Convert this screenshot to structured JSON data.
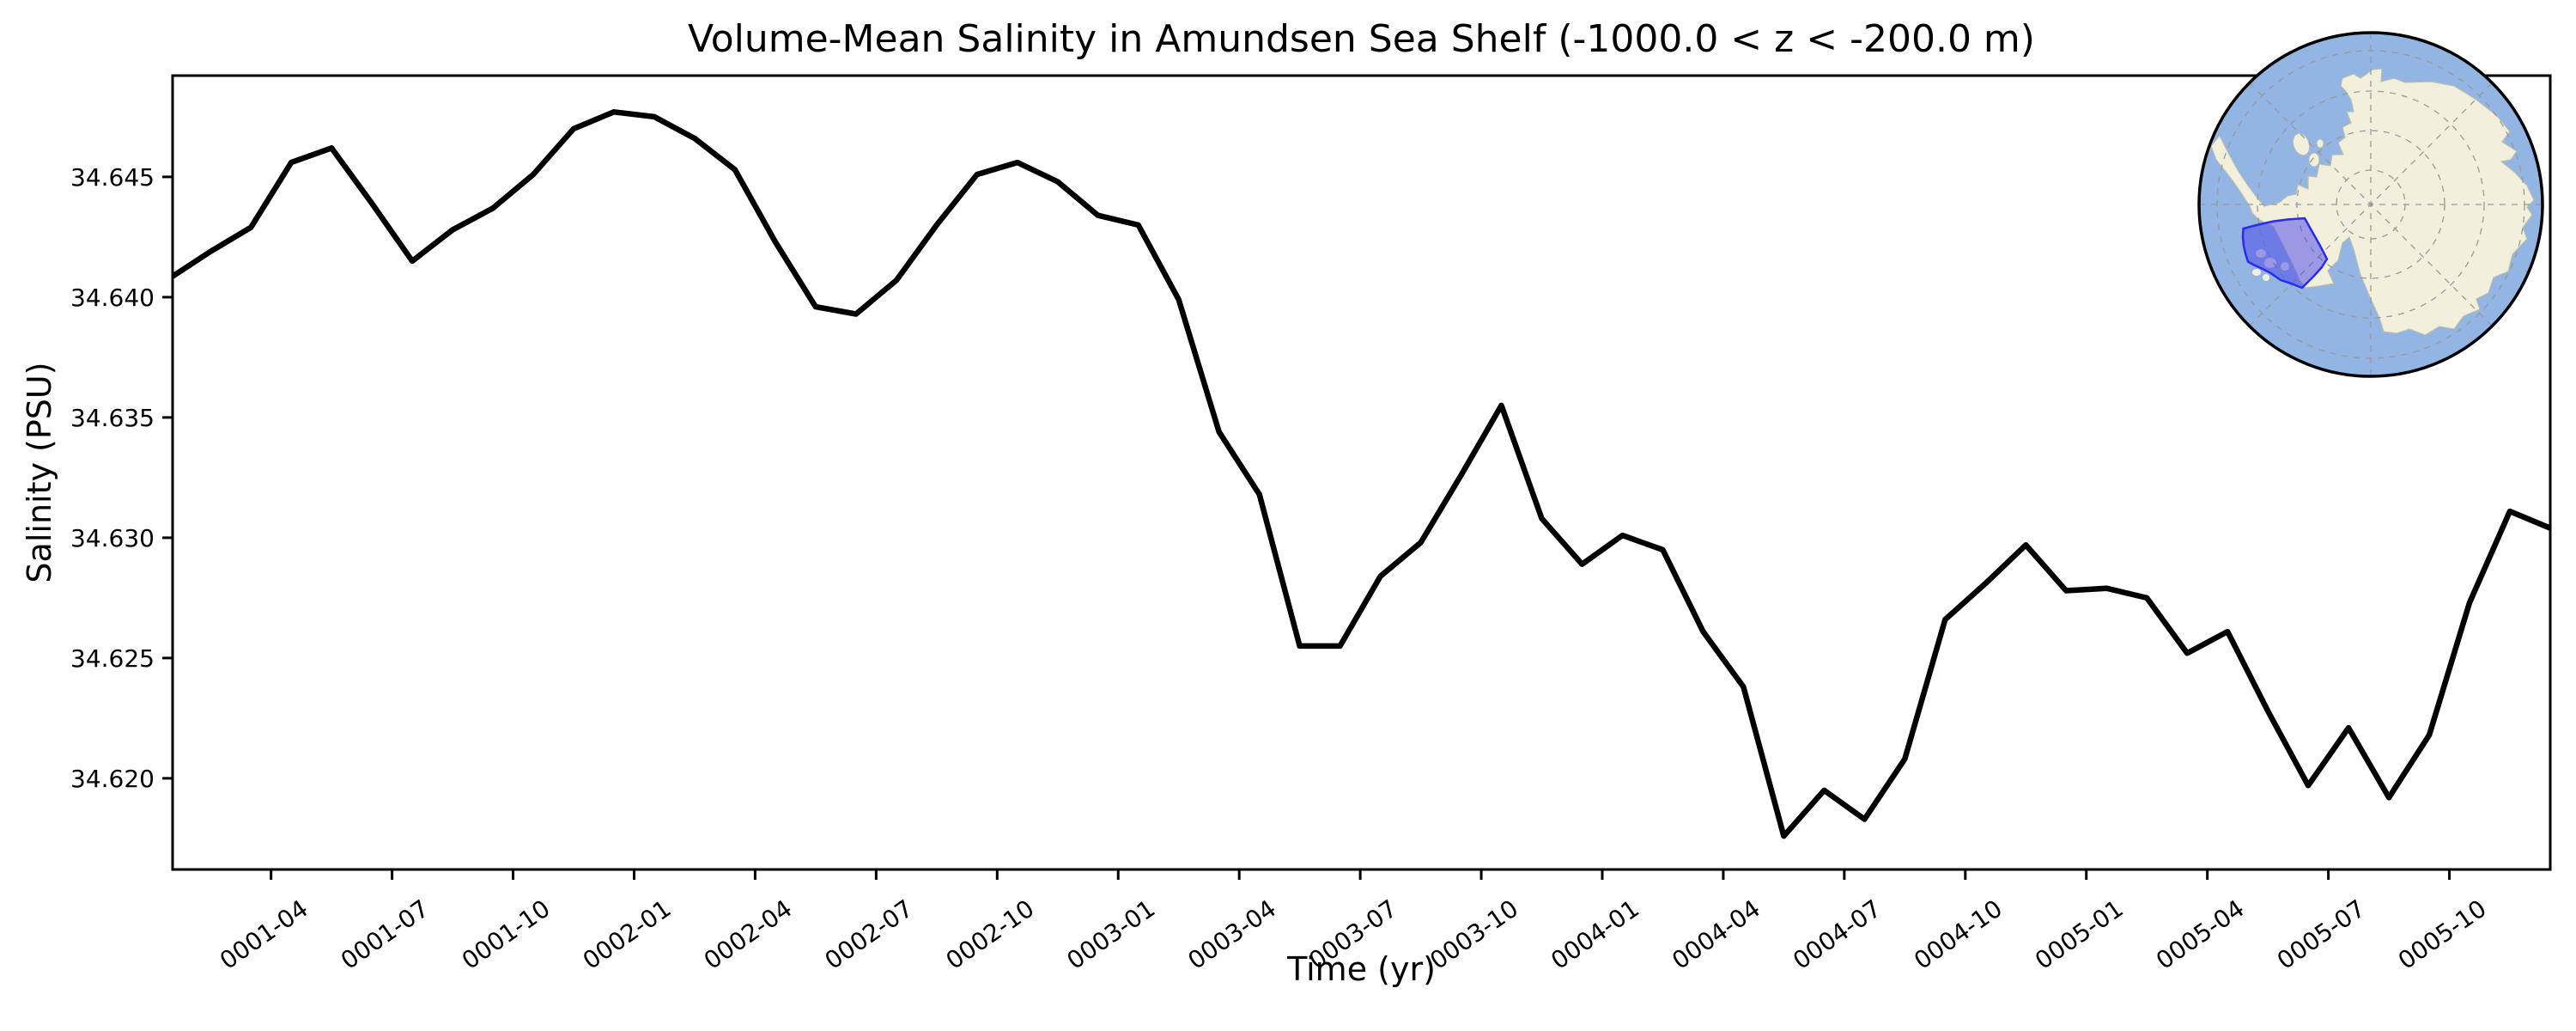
{
  "figure": {
    "title": "Volume-Mean Salinity in Amundsen Sea Shelf (-1000.0 < z < -200.0 m)",
    "background": "#ffffff"
  },
  "chart_data": {
    "type": "line",
    "title": "Volume-Mean Salinity in Amundsen Sea Shelf (-1000.0 < z < -200.0 m)",
    "xlabel": "Time (yr)",
    "ylabel": "Salinity (PSU)",
    "grid": false,
    "legend": false,
    "line_color": "#000000",
    "line_width": 6.5,
    "xlim_months": [
      0.559,
      59.5
    ],
    "ylim": [
      34.61621,
      34.64921
    ],
    "x_tick_labels": [
      "0001-04",
      "0001-07",
      "0001-10",
      "0002-01",
      "0002-04",
      "0002-07",
      "0002-10",
      "0003-01",
      "0003-04",
      "0003-07",
      "0003-10",
      "0004-01",
      "0004-04",
      "0004-07",
      "0004-10",
      "0005-01",
      "0005-04",
      "0005-07",
      "0005-10"
    ],
    "x_tick_months": [
      3,
      6,
      9,
      12,
      15,
      18,
      21,
      24,
      27,
      30,
      33,
      36,
      39,
      42,
      45,
      48,
      51,
      54,
      57
    ],
    "y_ticks": [
      34.62,
      34.625,
      34.63,
      34.635,
      34.64,
      34.645
    ],
    "y_tick_labels": [
      "34.620",
      "34.625",
      "34.630",
      "34.635",
      "34.640",
      "34.645"
    ],
    "series": [
      {
        "name": "volume-mean salinity",
        "x": [
          "0001-01",
          "0001-02",
          "0001-03",
          "0001-04",
          "0001-05",
          "0001-06",
          "0001-07",
          "0001-08",
          "0001-09",
          "0001-10",
          "0001-11",
          "0001-12",
          "0002-01",
          "0002-02",
          "0002-03",
          "0002-04",
          "0002-05",
          "0002-06",
          "0002-07",
          "0002-08",
          "0002-09",
          "0002-10",
          "0002-11",
          "0002-12",
          "0003-01",
          "0003-02",
          "0003-03",
          "0003-04",
          "0003-05",
          "0003-06",
          "0003-07",
          "0003-08",
          "0003-09",
          "0003-10",
          "0003-11",
          "0003-12",
          "0004-01",
          "0004-02",
          "0004-03",
          "0004-04",
          "0004-05",
          "0004-06",
          "0004-07",
          "0004-08",
          "0004-09",
          "0004-10",
          "0004-11",
          "0004-12",
          "0005-01",
          "0005-02",
          "0005-03",
          "0005-04",
          "0005-05",
          "0005-06",
          "0005-07",
          "0005-08",
          "0005-09",
          "0005-10",
          "0005-11",
          "0005-12"
        ],
        "values": [
          34.6408,
          34.6419,
          34.6429,
          34.6456,
          34.6462,
          34.6439,
          34.6415,
          34.6428,
          34.6437,
          34.6451,
          34.647,
          34.6477,
          34.6475,
          34.6466,
          34.6453,
          34.6423,
          34.6396,
          34.6393,
          34.6407,
          34.643,
          34.6451,
          34.6456,
          34.6448,
          34.6434,
          34.643,
          34.6399,
          34.6344,
          34.6318,
          34.6255,
          34.6255,
          34.6284,
          34.6298,
          34.6326,
          34.6355,
          34.6308,
          34.6289,
          34.6301,
          34.6295,
          34.6261,
          34.6238,
          34.6176,
          34.6195,
          34.6183,
          34.6208,
          34.6266,
          34.6281,
          34.6297,
          34.6278,
          34.6279,
          34.6275,
          34.6252,
          34.6261,
          34.6228,
          34.6197,
          34.6221,
          34.6192,
          34.6218,
          34.6273,
          34.6311,
          34.6304
        ]
      }
    ]
  },
  "inset_map": {
    "description": "South polar stereographic locator globe of Antarctica",
    "highlighted_region": "Amundsen Sea Shelf",
    "colors": {
      "ocean": "#92b5e3",
      "land": "#f2efdc",
      "coast": "#b9bfae",
      "graticule": "#999999",
      "region_fill": "rgba(72,66,235,0.5)",
      "region_stroke": "#2a2af0",
      "border": "#000000"
    }
  }
}
